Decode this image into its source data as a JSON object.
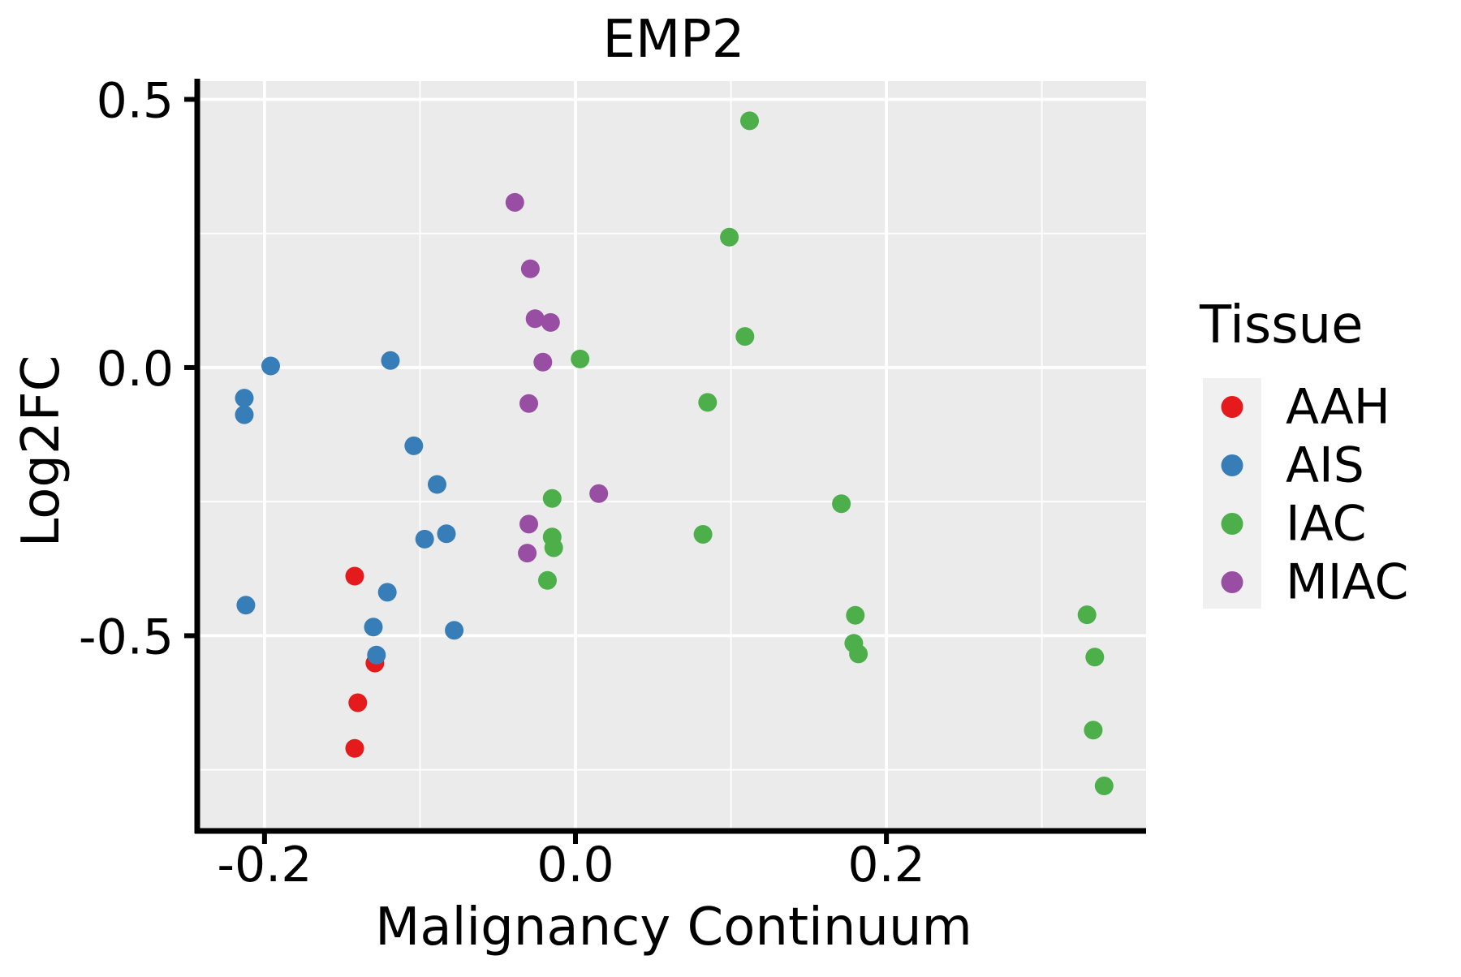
{
  "page": {
    "background": "#ffffff"
  },
  "chart_data": {
    "type": "scatter",
    "title": "EMP2",
    "xlabel": "Malignancy Continuum",
    "ylabel": "Log2FC",
    "legend_title": "Tissue",
    "legend_position": "right",
    "grid": true,
    "panel_bg": "#EBEBEB",
    "grid_color": "#FFFFFF",
    "axis_color": "#000000",
    "text_color": "#000000",
    "legend_key_bg": "#F0F0F0",
    "xlim": [
      -0.2417,
      0.367
    ],
    "ylim": [
      -0.861,
      0.534
    ],
    "x_major_ticks": [
      -0.2,
      0.0,
      0.2
    ],
    "x_tick_labels": [
      "-0.2",
      "0.0",
      "0.2"
    ],
    "x_minor_ticks": [
      -0.1,
      0.1,
      0.3
    ],
    "y_major_ticks": [
      0.5,
      0.0,
      -0.5
    ],
    "y_tick_labels": [
      "0.5",
      "0.0",
      "-0.5"
    ],
    "y_minor_ticks": [
      0.25,
      -0.25,
      -0.75
    ],
    "point_radius_px": 11.5,
    "series": [
      {
        "name": "AAH",
        "color": "#E41A1C",
        "points": [
          [
            -0.142,
            -0.389
          ],
          [
            -0.129,
            -0.551
          ],
          [
            -0.14,
            -0.625
          ],
          [
            -0.142,
            -0.71
          ]
        ]
      },
      {
        "name": "AIS",
        "color": "#377EB8",
        "points": [
          [
            -0.196,
            0.003
          ],
          [
            -0.213,
            -0.057
          ],
          [
            -0.213,
            -0.088
          ],
          [
            -0.119,
            0.013
          ],
          [
            -0.104,
            -0.146
          ],
          [
            -0.089,
            -0.218
          ],
          [
            -0.097,
            -0.32
          ],
          [
            -0.083,
            -0.31
          ],
          [
            -0.121,
            -0.419
          ],
          [
            -0.212,
            -0.443
          ],
          [
            -0.13,
            -0.484
          ],
          [
            -0.078,
            -0.49
          ],
          [
            -0.128,
            -0.536
          ]
        ]
      },
      {
        "name": "IAC",
        "color": "#4DAF4A",
        "points": [
          [
            0.112,
            0.46
          ],
          [
            0.099,
            0.243
          ],
          [
            0.109,
            0.058
          ],
          [
            0.003,
            0.016
          ],
          [
            0.085,
            -0.065
          ],
          [
            -0.015,
            -0.244
          ],
          [
            -0.015,
            -0.316
          ],
          [
            -0.014,
            -0.336
          ],
          [
            -0.018,
            -0.397
          ],
          [
            0.082,
            -0.311
          ],
          [
            0.171,
            -0.254
          ],
          [
            0.18,
            -0.462
          ],
          [
            0.179,
            -0.514
          ],
          [
            0.182,
            -0.534
          ],
          [
            0.329,
            -0.461
          ],
          [
            0.334,
            -0.54
          ],
          [
            0.333,
            -0.676
          ],
          [
            0.34,
            -0.78
          ]
        ]
      },
      {
        "name": "MIAC",
        "color": "#984EA3",
        "points": [
          [
            -0.039,
            0.308
          ],
          [
            -0.029,
            0.184
          ],
          [
            -0.026,
            0.091
          ],
          [
            -0.016,
            0.084
          ],
          [
            -0.021,
            0.01
          ],
          [
            -0.03,
            -0.067
          ],
          [
            0.015,
            -0.235
          ],
          [
            -0.03,
            -0.292
          ],
          [
            -0.031,
            -0.346
          ]
        ]
      }
    ]
  }
}
